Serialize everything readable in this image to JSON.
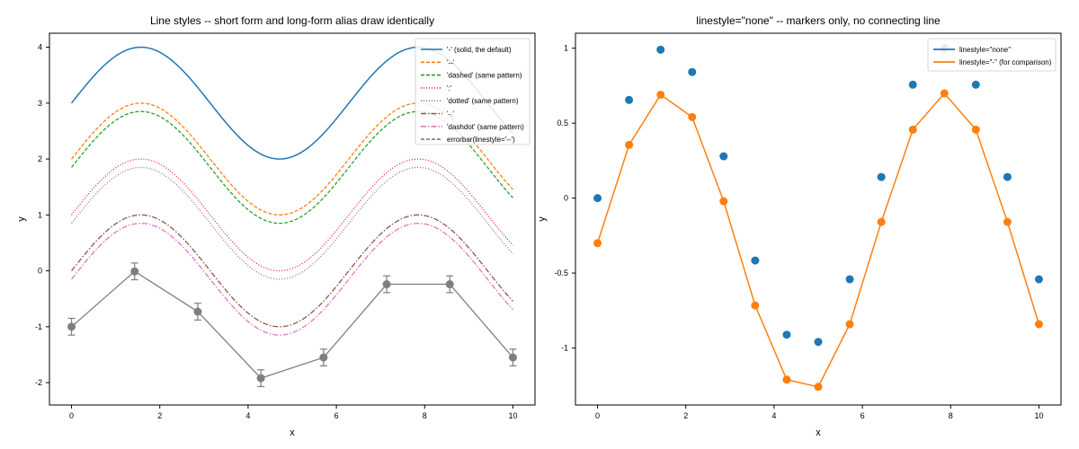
{
  "charts": [
    {
      "type": "line",
      "title": "Line styles -- short form and long-form alias draw identically",
      "xlabel": "x",
      "ylabel": "y",
      "xlim": [
        -0.5,
        10.5
      ],
      "ylim": [
        -2.4,
        4.25
      ],
      "xticks": [
        0,
        2,
        4,
        6,
        8,
        10
      ],
      "yticks": [
        -2,
        -1,
        0,
        1,
        2,
        3,
        4
      ],
      "legend": "top-right",
      "curves": [
        {
          "label": "'-' (solid, the default)",
          "color": "#1f77b4",
          "dash": "",
          "offset": 3
        },
        {
          "label": "'--'",
          "color": "#ff7f0e",
          "dash": "4 2",
          "offset": 2
        },
        {
          "label": "'dashed' (same pattern)",
          "color": "#2ca02c",
          "dash": "4 2",
          "offset": 1.85
        },
        {
          "label": "':'",
          "color": "#d62728",
          "dash": "1 2",
          "offset": 1
        },
        {
          "label": "'dotted' (same pattern)",
          "color": "#9467bd",
          "dash": "1 2",
          "offset": 0.85
        },
        {
          "label": "'-.'",
          "color": "#8c564b",
          "dash": "6 2 1.5 2",
          "offset": 0
        },
        {
          "label": "'dashdot' (same pattern)",
          "color": "#e377c2",
          "dash": "6 2 1.5 2",
          "offset": -0.15
        }
      ],
      "errorbar": {
        "label": "errorbar(linestyle='--')",
        "color": "#7f7f7f",
        "x": [
          0,
          1.43,
          2.86,
          4.29,
          5.71,
          7.14,
          8.57,
          10
        ],
        "y": [
          -1.0,
          -0.01,
          -0.73,
          -1.92,
          -1.55,
          -0.24,
          -0.24,
          -1.55
        ],
        "yerr": [
          0.15,
          0.15,
          0.15,
          0.15,
          0.15,
          0.15,
          0.15,
          0.15
        ]
      }
    },
    {
      "type": "scatter",
      "title": "linestyle=\"none\" -- markers only, no connecting line",
      "xlabel": "x",
      "ylabel": "y",
      "xlim": [
        -0.5,
        10.5
      ],
      "ylim": [
        -1.38,
        1.1
      ],
      "xticks": [
        0,
        2,
        4,
        6,
        8,
        10
      ],
      "yticks": [
        -1,
        -0.5,
        0,
        0.5,
        1
      ],
      "legend": "top-right",
      "series": [
        {
          "name": "linestyle=\"none\"",
          "color": "#1f77b4",
          "linestyle": "none",
          "x": [
            0,
            0.714,
            1.429,
            2.143,
            2.857,
            3.571,
            4.286,
            5,
            5.714,
            6.429,
            7.143,
            7.857,
            8.571,
            9.286,
            10
          ],
          "y": [
            0,
            0.655,
            0.99,
            0.841,
            0.279,
            -0.416,
            -0.911,
            -0.959,
            -0.541,
            0.141,
            0.757,
            0.999,
            0.757,
            0.141,
            -0.541
          ]
        },
        {
          "name": "linestyle=\"-\" (for comparison)",
          "color": "#ff7f0e",
          "linestyle": "-",
          "x": [
            0,
            0.714,
            1.429,
            2.143,
            2.857,
            3.571,
            4.286,
            5,
            5.714,
            6.429,
            7.143,
            7.857,
            8.571,
            9.286,
            10
          ],
          "y": [
            -0.3,
            0.355,
            0.69,
            0.541,
            -0.021,
            -0.716,
            -1.211,
            -1.259,
            -0.841,
            -0.159,
            0.457,
            0.699,
            0.457,
            -0.159,
            -0.841
          ]
        }
      ]
    }
  ]
}
